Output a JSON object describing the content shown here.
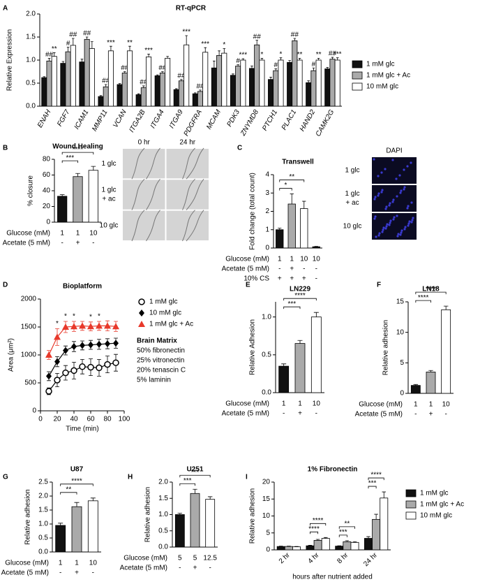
{
  "chart_data": [
    {
      "panel": "A",
      "type": "bar",
      "title": "RT-qPCR",
      "ylabel": "Relative Expression",
      "categories": [
        "ENAH",
        "FGF7",
        "ICAM1",
        "MMP11",
        "VCAN",
        "ITGA2B",
        "ITGA4",
        "ITGA9",
        "PDGFRA",
        "MCAM",
        "PDK3",
        "ZNYMD8",
        "PTCH1",
        "PLAC1",
        "HAND2",
        "CAMK2G"
      ],
      "ylim": [
        0,
        2
      ],
      "yticks": [
        {
          "value": 0,
          "label": "0.0"
        },
        0.5,
        {
          "value": 1,
          "label": "1.0"
        },
        1.5,
        {
          "value": 2,
          "label": "2.0"
        }
      ],
      "series": [
        {
          "name": "1 mM glc",
          "color": "#111111",
          "values": [
            0.62,
            0.93,
            0.96,
            0.21,
            0.47,
            0.25,
            0.66,
            0.36,
            0.27,
            0.83,
            0.67,
            0.82,
            0.58,
            0.95,
            0.51,
            0.81
          ],
          "errors": [
            0.02,
            0.04,
            0.06,
            0.02,
            0.02,
            0.02,
            0.02,
            0.02,
            0.02,
            0.15,
            0.03,
            0.05,
            0.05,
            0.04,
            0.04,
            0.03
          ],
          "annotations": [
            null,
            null,
            null,
            null,
            null,
            null,
            null,
            null,
            null,
            null,
            null,
            null,
            null,
            null,
            null,
            null
          ]
        },
        {
          "name": "1 mM glc + Ac",
          "color": "#aaaaaa",
          "values": [
            0.98,
            1.18,
            1.45,
            0.42,
            0.72,
            0.4,
            0.72,
            0.55,
            0.32,
            1.1,
            0.87,
            1.33,
            0.77,
            1.42,
            0.77,
            1.02
          ],
          "errors": [
            0.06,
            0.1,
            0.05,
            0.05,
            0.03,
            0.04,
            0.03,
            0.03,
            0.03,
            0.1,
            0.03,
            0.1,
            0.04,
            0.05,
            0.06,
            0.04
          ],
          "annotations": [
            "##",
            "#",
            "##",
            "##",
            "##",
            "##",
            "##",
            "##",
            "##",
            null,
            "#",
            "##",
            "#",
            "##",
            "#",
            "##"
          ]
        },
        {
          "name": "10 mM glc",
          "color": "#ffffff",
          "values": [
            1.08,
            1.32,
            1.25,
            1.2,
            1.2,
            1.07,
            1.04,
            1.33,
            1.17,
            1.15,
            1.0,
            1.0,
            1.0,
            1.0,
            1.0,
            1.0
          ],
          "errors": [
            0.08,
            0.15,
            0.15,
            0.1,
            0.1,
            0.06,
            0.04,
            0.2,
            0.1,
            0.1,
            0.03,
            0.04,
            0.05,
            0.04,
            0.04,
            0.05
          ],
          "annotations": [
            "**",
            "##",
            null,
            "***",
            "**",
            "***",
            null,
            "***",
            "***",
            "*",
            "***",
            "*",
            "*",
            "**",
            "**",
            "***"
          ]
        }
      ]
    },
    {
      "panel": "B",
      "type": "bar",
      "title": "Wound Healing",
      "ylabel": "% closure",
      "values": [
        33,
        58,
        66
      ],
      "errors": [
        2,
        4,
        5
      ],
      "colors": [
        "#111111",
        "#aaaaaa",
        "#ffffff"
      ],
      "ylim": [
        0,
        80
      ],
      "yticks": [
        0,
        20,
        40,
        60,
        80
      ],
      "conditions": [
        {
          "label": "Glucose (mM)",
          "labels": [
            "1",
            "1",
            "10"
          ]
        },
        {
          "label": "Acetate (5 mM)",
          "labels": [
            "-",
            "+",
            "-"
          ]
        }
      ],
      "brackets": [
        {
          "between": [
            0,
            1
          ],
          "label": "***"
        },
        {
          "between": [
            0,
            2
          ],
          "label": "****"
        }
      ],
      "images": {
        "columns": [
          "0 hr",
          "24 hr"
        ],
        "rows": [
          [
            "1 glc"
          ],
          [
            "1 glc",
            "+ ac"
          ],
          [
            "10 glc"
          ]
        ]
      }
    },
    {
      "panel": "C",
      "type": "bar",
      "title": "Transwell",
      "ylabel": "Fold change (total count)",
      "values": [
        1.0,
        2.4,
        2.15,
        0.07
      ],
      "errors": [
        0.08,
        0.55,
        0.4,
        0.02
      ],
      "colors": [
        "#111111",
        "#aaaaaa",
        "#ffffff",
        "#111111"
      ],
      "ylim": [
        0,
        4
      ],
      "yticks": [
        0,
        1,
        2,
        3,
        4
      ],
      "conditions": [
        {
          "label": "Glucose (mM)",
          "labels": [
            "1",
            "1",
            "10",
            "10"
          ]
        },
        {
          "label": "Acetate (5 mM)",
          "labels": [
            "-",
            "+",
            "-",
            "-"
          ]
        },
        {
          "label": "10% CS",
          "labels": [
            "+",
            "+",
            "+",
            "-"
          ]
        }
      ],
      "brackets": [
        {
          "between": [
            0,
            1
          ],
          "label": "*"
        },
        {
          "between": [
            0,
            2
          ],
          "label": "**"
        }
      ],
      "images": {
        "columns": [
          "DAPI"
        ],
        "rows": [
          [
            "1 glc"
          ],
          [
            "1 glc",
            "+ ac"
          ],
          [
            "10 glc"
          ]
        ]
      }
    },
    {
      "panel": "D",
      "type": "line",
      "title": "Bioplatform",
      "ylabel": "Area (μm²)",
      "xlabel": "Time (min)",
      "x": [
        10,
        20,
        30,
        40,
        50,
        60,
        70,
        80,
        90
      ],
      "xlim": [
        0,
        100
      ],
      "xticks": [
        0,
        20,
        40,
        60,
        80,
        100
      ],
      "ylim": [
        0,
        2000
      ],
      "yticks": [
        0,
        500,
        1000,
        1500,
        2000
      ],
      "series": [
        {
          "name": "1 mM glc",
          "color": "#000000",
          "marker": "circle-open",
          "values": [
            350,
            550,
            680,
            720,
            790,
            780,
            770,
            830,
            860
          ],
          "errors": [
            60,
            120,
            130,
            150,
            130,
            150,
            150,
            150,
            150
          ]
        },
        {
          "name": "10 mM glc",
          "color": "#000000",
          "marker": "diamond",
          "values": [
            620,
            880,
            1080,
            1150,
            1170,
            1180,
            1190,
            1200,
            1210
          ],
          "errors": [
            80,
            90,
            80,
            90,
            80,
            80,
            90,
            90,
            90
          ]
        },
        {
          "name": "1 mM glc + Ac",
          "color": "#e8392b",
          "marker": "triangle",
          "values": [
            1000,
            1320,
            1500,
            1510,
            1520,
            1510,
            1520,
            1520,
            1510
          ],
          "errors": [
            80,
            150,
            100,
            90,
            80,
            80,
            80,
            90,
            90
          ]
        }
      ],
      "significance": [
        {
          "x": 20,
          "label": "*"
        },
        {
          "x": 30,
          "label": "*"
        },
        {
          "x": 40,
          "label": "*"
        },
        {
          "x": 60,
          "label": "*"
        },
        {
          "x": 70,
          "label": "*"
        }
      ],
      "notes": [
        "Brain Matrix",
        "50% fibronectin",
        "25% vitronectin",
        "20% tenascin C",
        "5% laminin"
      ]
    },
    {
      "panel": "E",
      "type": "bar",
      "title": "LN229",
      "ylabel": "Relative Adhesion",
      "values": [
        0.35,
        0.65,
        1.0
      ],
      "errors": [
        0.03,
        0.04,
        0.06
      ],
      "colors": [
        "#111111",
        "#aaaaaa",
        "#ffffff"
      ],
      "ylim": [
        0,
        1.2
      ],
      "yticks": [
        {
          "value": 0,
          "label": "0.0"
        },
        0.5,
        {
          "value": 1,
          "label": "1.0"
        }
      ],
      "conditions": [
        {
          "label": "Glucose (mM)",
          "labels": [
            "1",
            "1",
            "10"
          ]
        },
        {
          "label": "Acetate (5 mM)",
          "labels": [
            "-",
            "+",
            "-"
          ]
        }
      ],
      "brackets": [
        {
          "between": [
            0,
            1
          ],
          "label": "***"
        },
        {
          "between": [
            0,
            2
          ],
          "label": "****"
        }
      ]
    },
    {
      "panel": "F",
      "type": "bar",
      "title": "LN18",
      "ylabel": "Relative adhesion",
      "values": [
        1.3,
        3.5,
        13.7
      ],
      "errors": [
        0.15,
        0.25,
        0.6
      ],
      "colors": [
        "#111111",
        "#aaaaaa",
        "#ffffff"
      ],
      "ylim": [
        0,
        15
      ],
      "yticks": [
        0,
        5,
        10,
        15
      ],
      "conditions": [
        {
          "label": "Glucose (mM)",
          "labels": [
            "1",
            "1",
            "10"
          ]
        },
        {
          "label": "Acetate (5 mM)",
          "labels": [
            "-",
            "+",
            "-"
          ]
        }
      ],
      "brackets": [
        {
          "between": [
            0,
            1
          ],
          "label": "****"
        },
        {
          "between": [
            0,
            2
          ],
          "label": "****"
        }
      ]
    },
    {
      "panel": "G",
      "type": "bar",
      "title": "U87",
      "ylabel": "Relative adhesion",
      "values": [
        0.95,
        1.62,
        1.83
      ],
      "errors": [
        0.08,
        0.15,
        0.1
      ],
      "colors": [
        "#111111",
        "#aaaaaa",
        "#ffffff"
      ],
      "ylim": [
        0,
        2.5
      ],
      "yticks": [
        {
          "value": 0,
          "label": "0.0"
        },
        0.5,
        {
          "value": 1,
          "label": "1.0"
        },
        1.5,
        {
          "value": 2,
          "label": "2.0"
        },
        2.5
      ],
      "conditions": [
        {
          "label": "Glucose (mM)",
          "labels": [
            "1",
            "1",
            "10"
          ]
        },
        {
          "label": "Acetate (5 mM)",
          "labels": [
            "-",
            "+",
            "-"
          ]
        }
      ],
      "brackets": [
        {
          "between": [
            0,
            1
          ],
          "label": "**"
        },
        {
          "between": [
            0,
            2
          ],
          "label": "****"
        }
      ]
    },
    {
      "panel": "H",
      "type": "bar",
      "title": "U251",
      "ylabel": "Relative adhesion",
      "values": [
        1.0,
        1.65,
        1.47
      ],
      "errors": [
        0.04,
        0.13,
        0.08
      ],
      "colors": [
        "#111111",
        "#aaaaaa",
        "#ffffff"
      ],
      "ylim": [
        0,
        2
      ],
      "yticks": [
        {
          "value": 0,
          "label": "0.0"
        },
        0.5,
        {
          "value": 1,
          "label": "1.0"
        },
        1.5,
        {
          "value": 2,
          "label": "2.0"
        }
      ],
      "conditions": [
        {
          "label": "Glucose (mM)",
          "labels": [
            "5",
            "5",
            "12.5"
          ]
        },
        {
          "label": "Acetate (5 mM)",
          "labels": [
            "-",
            "+",
            "-"
          ]
        }
      ],
      "brackets": [
        {
          "between": [
            0,
            1
          ],
          "label": "***"
        },
        {
          "between": [
            0,
            2
          ],
          "label": "***"
        }
      ]
    },
    {
      "panel": "I",
      "type": "bar",
      "title": "1% Fibronectin",
      "ylabel": "Relative adhesion",
      "xlabel": "hours after nutrient added",
      "categories": [
        "2 hr",
        "4 hr",
        "8 hr",
        "24 hr"
      ],
      "ylim": [
        0,
        20
      ],
      "yticks": [
        0,
        5,
        10,
        15,
        20
      ],
      "series": [
        {
          "name": "1 mM glc",
          "color": "#111111",
          "values": [
            1.0,
            1.2,
            1.1,
            3.4
          ],
          "errors": [
            0.1,
            0.15,
            0.1,
            0.5
          ]
        },
        {
          "name": "1 mM glc + Ac",
          "color": "#aaaaaa",
          "values": [
            1.0,
            2.8,
            2.4,
            9.0
          ],
          "errors": [
            0.1,
            0.3,
            0.3,
            1.5
          ]
        },
        {
          "name": "10 mM glc",
          "color": "#ffffff",
          "values": [
            0.9,
            3.4,
            2.2,
            15.3
          ],
          "errors": [
            0.1,
            0.25,
            0.2,
            1.8
          ]
        }
      ],
      "brackets": [
        {
          "category": 1,
          "between": [
            0,
            1
          ],
          "label": "****"
        },
        {
          "category": 1,
          "between": [
            0,
            2
          ],
          "label": "****"
        },
        {
          "category": 2,
          "between": [
            0,
            1
          ],
          "label": "***"
        },
        {
          "category": 2,
          "between": [
            0,
            2
          ],
          "label": "**"
        },
        {
          "category": 3,
          "between": [
            0,
            1
          ],
          "label": "***"
        },
        {
          "category": 3,
          "between": [
            0,
            2
          ],
          "label": "****"
        }
      ]
    }
  ]
}
